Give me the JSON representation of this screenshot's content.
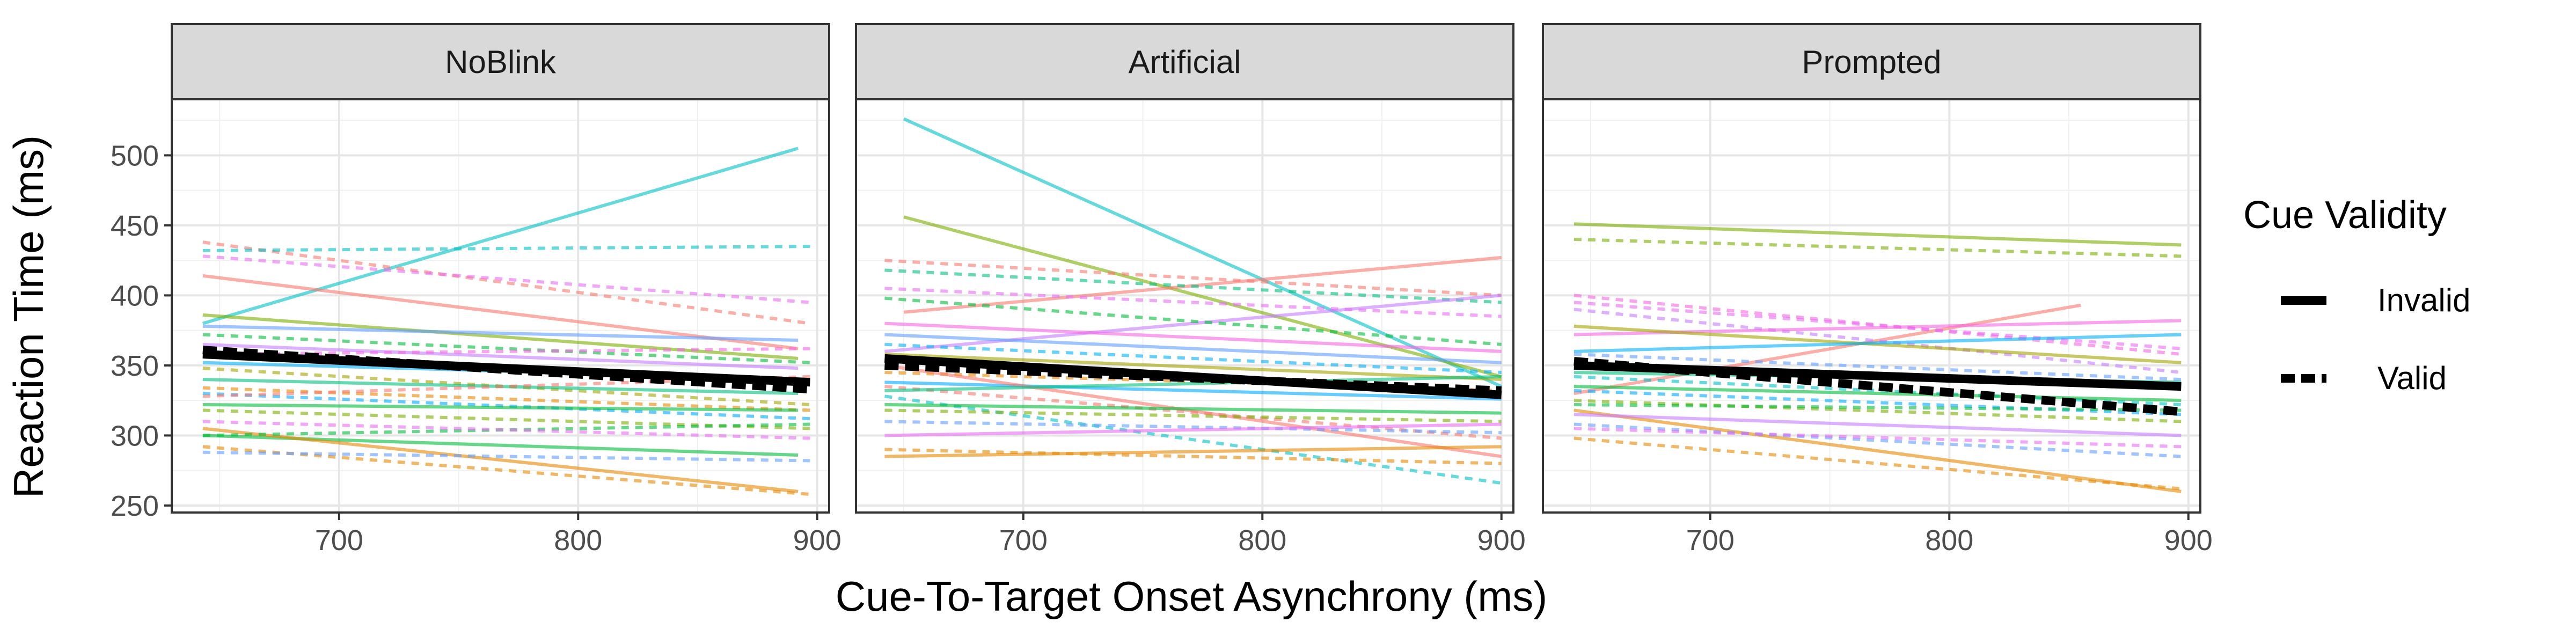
{
  "chart_data": {
    "type": "line",
    "facet_labels": [
      "NoBlink",
      "Artificial",
      "Prompted"
    ],
    "xlabel": "Cue-To-Target Onset Asynchrony (ms)",
    "ylabel": "Reaction Time (ms)",
    "xlim": [
      630,
      905
    ],
    "ylim": [
      245,
      540
    ],
    "x_ticks": [
      700,
      800,
      900
    ],
    "y_ticks": [
      250,
      300,
      350,
      400,
      450,
      500
    ],
    "grid": true,
    "legend_position": "right",
    "legend": {
      "title": "Cue Validity",
      "entries": [
        {
          "label": "Invalid",
          "linetype": "solid"
        },
        {
          "label": "Valid",
          "linetype": "dashed"
        }
      ]
    },
    "panels": [
      {
        "facet": "NoBlink",
        "mean_series": [
          {
            "name": "Invalid",
            "x": [
              643,
              897
            ],
            "y": [
              358,
              338
            ]
          },
          {
            "name": "Valid",
            "x": [
              643,
              897
            ],
            "y": [
              361,
              333
            ]
          }
        ],
        "participant_lines": [
          {
            "color": "#00BFC4",
            "dash": false,
            "x": [
              643,
              892
            ],
            "y": [
              380,
              505
            ]
          },
          {
            "color": "#F8766D",
            "dash": false,
            "x": [
              643,
              892
            ],
            "y": [
              414,
              362
            ]
          },
          {
            "color": "#F8766D",
            "dash": true,
            "x": [
              643,
              897
            ],
            "y": [
              438,
              380
            ]
          },
          {
            "color": "#00BFC4",
            "dash": true,
            "x": [
              643,
              897
            ],
            "y": [
              432,
              435
            ]
          },
          {
            "color": "#E76BF3",
            "dash": true,
            "x": [
              643,
              897
            ],
            "y": [
              428,
              395
            ]
          },
          {
            "color": "#7CAE00",
            "dash": false,
            "x": [
              643,
              892
            ],
            "y": [
              386,
              355
            ]
          },
          {
            "color": "#619CFF",
            "dash": false,
            "x": [
              643,
              892
            ],
            "y": [
              378,
              368
            ]
          },
          {
            "color": "#00BA38",
            "dash": true,
            "x": [
              643,
              897
            ],
            "y": [
              372,
              352
            ]
          },
          {
            "color": "#C77CFF",
            "dash": false,
            "x": [
              643,
              892
            ],
            "y": [
              365,
              348
            ]
          },
          {
            "color": "#F564E3",
            "dash": true,
            "x": [
              643,
              897
            ],
            "y": [
              358,
              362
            ]
          },
          {
            "color": "#00B0F6",
            "dash": false,
            "x": [
              643,
              892
            ],
            "y": [
              352,
              340
            ]
          },
          {
            "color": "#A3A500",
            "dash": true,
            "x": [
              643,
              897
            ],
            "y": [
              348,
              322
            ]
          },
          {
            "color": "#00BF7D",
            "dash": false,
            "x": [
              643,
              892
            ],
            "y": [
              340,
              330
            ]
          },
          {
            "color": "#E58700",
            "dash": true,
            "x": [
              643,
              897
            ],
            "y": [
              334,
              318
            ]
          },
          {
            "color": "#00A9FF",
            "dash": true,
            "x": [
              643,
              897
            ],
            "y": [
              330,
              312
            ]
          },
          {
            "color": "#F8766D",
            "dash": true,
            "x": [
              643,
              897
            ],
            "y": [
              328,
              342
            ]
          },
          {
            "color": "#00BA38",
            "dash": false,
            "x": [
              643,
              892
            ],
            "y": [
              322,
              318
            ]
          },
          {
            "color": "#7CAE00",
            "dash": true,
            "x": [
              643,
              897
            ],
            "y": [
              318,
              305
            ]
          },
          {
            "color": "#00BA38",
            "dash": false,
            "x": [
              643,
              892
            ],
            "y": [
              300,
              286
            ]
          },
          {
            "color": "#E58700",
            "dash": false,
            "x": [
              643,
              892
            ],
            "y": [
              305,
              260
            ]
          },
          {
            "color": "#E58700",
            "dash": true,
            "x": [
              643,
              897
            ],
            "y": [
              292,
              258
            ]
          },
          {
            "color": "#619CFF",
            "dash": true,
            "x": [
              643,
              897
            ],
            "y": [
              288,
              282
            ]
          },
          {
            "color": "#00BA38",
            "dash": true,
            "x": [
              643,
              897
            ],
            "y": [
              300,
              308
            ]
          },
          {
            "color": "#E76BF3",
            "dash": true,
            "x": [
              643,
              897
            ],
            "y": [
              310,
              298
            ]
          }
        ]
      },
      {
        "facet": "Artificial",
        "mean_series": [
          {
            "name": "Invalid",
            "x": [
              642,
              900
            ],
            "y": [
              355,
              329
            ]
          },
          {
            "name": "Valid",
            "x": [
              642,
              900
            ],
            "y": [
              350,
              332
            ]
          }
        ],
        "participant_lines": [
          {
            "color": "#00BFC4",
            "dash": false,
            "x": [
              650,
              900
            ],
            "y": [
              526,
              335
            ]
          },
          {
            "color": "#7CAE00",
            "dash": false,
            "x": [
              650,
              900
            ],
            "y": [
              456,
              342
            ]
          },
          {
            "color": "#F8766D",
            "dash": false,
            "x": [
              650,
              900
            ],
            "y": [
              388,
              427
            ]
          },
          {
            "color": "#F8766D",
            "dash": true,
            "x": [
              642,
              900
            ],
            "y": [
              425,
              400
            ]
          },
          {
            "color": "#00BF7D",
            "dash": true,
            "x": [
              642,
              900
            ],
            "y": [
              418,
              395
            ]
          },
          {
            "color": "#C77CFF",
            "dash": false,
            "x": [
              642,
              900
            ],
            "y": [
              360,
              400
            ]
          },
          {
            "color": "#E76BF3",
            "dash": true,
            "x": [
              642,
              900
            ],
            "y": [
              405,
              385
            ]
          },
          {
            "color": "#00BA38",
            "dash": true,
            "x": [
              642,
              900
            ],
            "y": [
              398,
              365
            ]
          },
          {
            "color": "#619CFF",
            "dash": false,
            "x": [
              642,
              900
            ],
            "y": [
              372,
              352
            ]
          },
          {
            "color": "#F564E3",
            "dash": false,
            "x": [
              642,
              900
            ],
            "y": [
              380,
              360
            ]
          },
          {
            "color": "#00B0F6",
            "dash": true,
            "x": [
              642,
              900
            ],
            "y": [
              365,
              345
            ]
          },
          {
            "color": "#A3A500",
            "dash": false,
            "x": [
              642,
              900
            ],
            "y": [
              358,
              340
            ]
          },
          {
            "color": "#E58700",
            "dash": true,
            "x": [
              642,
              900
            ],
            "y": [
              345,
              332
            ]
          },
          {
            "color": "#00A9FF",
            "dash": false,
            "x": [
              642,
              900
            ],
            "y": [
              338,
              326
            ]
          },
          {
            "color": "#F8766D",
            "dash": false,
            "x": [
              642,
              900
            ],
            "y": [
              350,
              285
            ]
          },
          {
            "color": "#F8766D",
            "dash": true,
            "x": [
              642,
              900
            ],
            "y": [
              335,
              298
            ]
          },
          {
            "color": "#00BFC4",
            "dash": true,
            "x": [
              642,
              900
            ],
            "y": [
              328,
              266
            ]
          },
          {
            "color": "#00BA38",
            "dash": false,
            "x": [
              642,
              900
            ],
            "y": [
              322,
              316
            ]
          },
          {
            "color": "#7CAE00",
            "dash": true,
            "x": [
              642,
              900
            ],
            "y": [
              318,
              310
            ]
          },
          {
            "color": "#619CFF",
            "dash": true,
            "x": [
              642,
              900
            ],
            "y": [
              310,
              302
            ]
          },
          {
            "color": "#E58700",
            "dash": false,
            "x": [
              642,
              900
            ],
            "y": [
              285,
              292
            ]
          },
          {
            "color": "#E58700",
            "dash": true,
            "x": [
              642,
              900
            ],
            "y": [
              290,
              280
            ]
          },
          {
            "color": "#E76BF3",
            "dash": false,
            "x": [
              642,
              900
            ],
            "y": [
              300,
              308
            ]
          },
          {
            "color": "#00BF7D",
            "dash": false,
            "x": [
              642,
              900
            ],
            "y": [
              332,
              342
            ]
          }
        ]
      },
      {
        "facet": "Prompted",
        "mean_series": [
          {
            "name": "Invalid",
            "x": [
              643,
              897
            ],
            "y": [
              350,
              335
            ]
          },
          {
            "name": "Valid",
            "x": [
              643,
              897
            ],
            "y": [
              353,
              317
            ]
          }
        ],
        "participant_lines": [
          {
            "color": "#7CAE00",
            "dash": false,
            "x": [
              643,
              897
            ],
            "y": [
              451,
              436
            ]
          },
          {
            "color": "#7CAE00",
            "dash": true,
            "x": [
              643,
              897
            ],
            "y": [
              440,
              428
            ]
          },
          {
            "color": "#F8766D",
            "dash": false,
            "x": [
              643,
              855
            ],
            "y": [
              330,
              393
            ]
          },
          {
            "color": "#F564E3",
            "dash": true,
            "x": [
              643,
              897
            ],
            "y": [
              400,
              358
            ]
          },
          {
            "color": "#E76BF3",
            "dash": true,
            "x": [
              643,
              897
            ],
            "y": [
              395,
              362
            ]
          },
          {
            "color": "#C77CFF",
            "dash": true,
            "x": [
              643,
              897
            ],
            "y": [
              390,
              345
            ]
          },
          {
            "color": "#F564E3",
            "dash": false,
            "x": [
              643,
              897
            ],
            "y": [
              372,
              382
            ]
          },
          {
            "color": "#A3A500",
            "dash": false,
            "x": [
              643,
              897
            ],
            "y": [
              378,
              352
            ]
          },
          {
            "color": "#00B0F6",
            "dash": false,
            "x": [
              643,
              897
            ],
            "y": [
              360,
              372
            ]
          },
          {
            "color": "#619CFF",
            "dash": true,
            "x": [
              643,
              897
            ],
            "y": [
              358,
              340
            ]
          },
          {
            "color": "#00BF7D",
            "dash": false,
            "x": [
              643,
              897
            ],
            "y": [
              345,
              338
            ]
          },
          {
            "color": "#00BFC4",
            "dash": true,
            "x": [
              643,
              897
            ],
            "y": [
              342,
              322
            ]
          },
          {
            "color": "#00BA38",
            "dash": false,
            "x": [
              643,
              897
            ],
            "y": [
              335,
              325
            ]
          },
          {
            "color": "#00A9FF",
            "dash": true,
            "x": [
              643,
              897
            ],
            "y": [
              332,
              315
            ]
          },
          {
            "color": "#7CAE00",
            "dash": true,
            "x": [
              643,
              897
            ],
            "y": [
              325,
              310
            ]
          },
          {
            "color": "#E58700",
            "dash": false,
            "x": [
              643,
              897
            ],
            "y": [
              318,
              260
            ]
          },
          {
            "color": "#E58700",
            "dash": true,
            "x": [
              643,
              897
            ],
            "y": [
              298,
              262
            ]
          },
          {
            "color": "#619CFF",
            "dash": true,
            "x": [
              643,
              897
            ],
            "y": [
              308,
              285
            ]
          },
          {
            "color": "#C77CFF",
            "dash": false,
            "x": [
              643,
              897
            ],
            "y": [
              315,
              300
            ]
          },
          {
            "color": "#E76BF3",
            "dash": true,
            "x": [
              643,
              897
            ],
            "y": [
              305,
              292
            ]
          },
          {
            "color": "#00BA38",
            "dash": true,
            "x": [
              643,
              897
            ],
            "y": [
              322,
              318
            ]
          }
        ]
      }
    ]
  }
}
